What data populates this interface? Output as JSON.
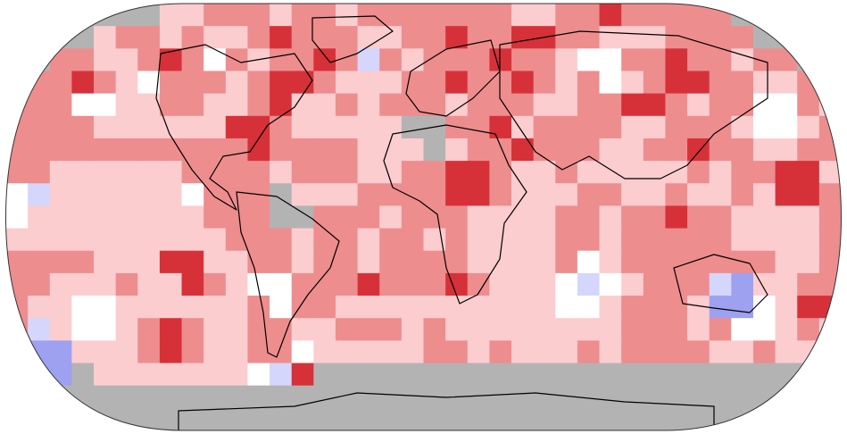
{
  "map": {
    "projection": "robinson",
    "colors": {
      "missing": "#b3b3b3",
      "much_warmer": "#d63139",
      "warmer": "#ee8d8e",
      "slightly_warmer": "#fbcdcf",
      "near_normal": "#ffffff",
      "slightly_cooler": "#d5d6fb",
      "cooler": "#9ea1f0",
      "coastline": "#000000",
      "border": "#555555"
    }
  }
}
